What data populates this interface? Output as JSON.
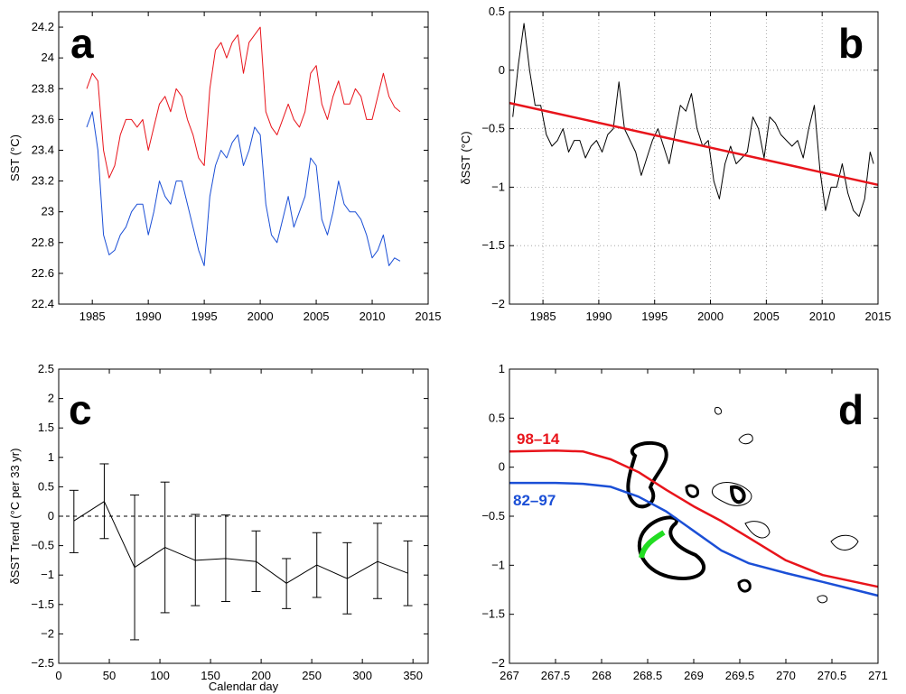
{
  "chart_data": [
    {
      "panel": "a",
      "type": "line",
      "xlabel": "",
      "ylabel": "SST (°C)",
      "xlim": [
        1982,
        2015
      ],
      "ylim": [
        22.4,
        24.3
      ],
      "xticks": [
        1985,
        1990,
        1995,
        2000,
        2005,
        2010,
        2015
      ],
      "yticks": [
        22.4,
        22.6,
        22.8,
        23,
        23.2,
        23.4,
        23.6,
        23.8,
        24,
        24.2
      ],
      "yticklabels": [
        "22.4",
        "22.6",
        "22.8",
        "23",
        "23.2",
        "23.4",
        "23.6",
        "23.8",
        "24",
        "24.2"
      ],
      "grid": false,
      "series": [
        {
          "color": "#e8141b",
          "x": [
            1984.5,
            1985.0,
            1985.5,
            1986.0,
            1986.5,
            1987.0,
            1987.5,
            1988.0,
            1988.5,
            1989.0,
            1989.5,
            1990.0,
            1990.5,
            1991.0,
            1991.5,
            1992.0,
            1992.5,
            1993.0,
            1993.5,
            1994.0,
            1994.5,
            1995.0,
            1995.5,
            1996.0,
            1996.5,
            1997.0,
            1997.5,
            1998.0,
            1998.5,
            1999.0,
            1999.5,
            2000.0,
            2000.5,
            2001.0,
            2001.5,
            2002.0,
            2002.5,
            2003.0,
            2003.5,
            2004.0,
            2004.5,
            2005.0,
            2005.5,
            2006.0,
            2006.5,
            2007.0,
            2007.5,
            2008.0,
            2008.5,
            2009.0,
            2009.5,
            2010.0,
            2010.5,
            2011.0,
            2011.5,
            2012.0,
            2012.5
          ],
          "values": [
            23.8,
            23.9,
            23.85,
            23.4,
            23.22,
            23.3,
            23.5,
            23.6,
            23.6,
            23.55,
            23.6,
            23.4,
            23.55,
            23.7,
            23.75,
            23.65,
            23.8,
            23.75,
            23.6,
            23.5,
            23.35,
            23.3,
            23.8,
            24.05,
            24.1,
            24.0,
            24.1,
            24.15,
            23.9,
            24.1,
            24.15,
            24.2,
            23.65,
            23.55,
            23.5,
            23.6,
            23.7,
            23.6,
            23.55,
            23.65,
            23.9,
            23.95,
            23.7,
            23.6,
            23.75,
            23.85,
            23.7,
            23.7,
            23.8,
            23.75,
            23.6,
            23.6,
            23.75,
            23.9,
            23.75,
            23.68,
            23.65
          ]
        },
        {
          "color": "#1b4fd6",
          "x": [
            1984.5,
            1985.0,
            1985.5,
            1986.0,
            1986.5,
            1987.0,
            1987.5,
            1988.0,
            1988.5,
            1989.0,
            1989.5,
            1990.0,
            1990.5,
            1991.0,
            1991.5,
            1992.0,
            1992.5,
            1993.0,
            1993.5,
            1994.0,
            1994.5,
            1995.0,
            1995.5,
            1996.0,
            1996.5,
            1997.0,
            1997.5,
            1998.0,
            1998.5,
            1999.0,
            1999.5,
            2000.0,
            2000.5,
            2001.0,
            2001.5,
            2002.0,
            2002.5,
            2003.0,
            2003.5,
            2004.0,
            2004.5,
            2005.0,
            2005.5,
            2006.0,
            2006.5,
            2007.0,
            2007.5,
            2008.0,
            2008.5,
            2009.0,
            2009.5,
            2010.0,
            2010.5,
            2011.0,
            2011.5,
            2012.0,
            2012.5
          ],
          "values": [
            23.55,
            23.65,
            23.4,
            22.85,
            22.72,
            22.75,
            22.85,
            22.9,
            23.0,
            23.05,
            23.05,
            22.85,
            23.0,
            23.2,
            23.1,
            23.05,
            23.2,
            23.2,
            23.05,
            22.9,
            22.75,
            22.65,
            23.1,
            23.3,
            23.4,
            23.35,
            23.45,
            23.5,
            23.3,
            23.4,
            23.55,
            23.5,
            23.05,
            22.85,
            22.8,
            22.95,
            23.1,
            22.9,
            23.0,
            23.1,
            23.35,
            23.3,
            22.95,
            22.85,
            23.0,
            23.2,
            23.05,
            23.0,
            23.0,
            22.95,
            22.85,
            22.7,
            22.75,
            22.85,
            22.65,
            22.7,
            22.68
          ]
        }
      ]
    },
    {
      "panel": "b",
      "type": "line",
      "xlabel": "",
      "ylabel": "δSST (°C)",
      "xlim": [
        1982,
        2015
      ],
      "ylim": [
        -2,
        0.5
      ],
      "xticks": [
        1985,
        1990,
        1995,
        2000,
        2005,
        2010,
        2015
      ],
      "yticks": [
        -2,
        -1.5,
        -1,
        -0.5,
        0,
        0.5
      ],
      "yticklabels": [
        "−2",
        "−1.5",
        "−1",
        "−0.5",
        "0",
        "0.5"
      ],
      "grid": true,
      "series": [
        {
          "color": "#000000",
          "x": [
            1982.3,
            1982.8,
            1983.3,
            1983.8,
            1984.3,
            1984.8,
            1985.3,
            1985.8,
            1986.3,
            1986.8,
            1987.3,
            1987.8,
            1988.3,
            1988.8,
            1989.3,
            1989.8,
            1990.3,
            1990.8,
            1991.3,
            1991.8,
            1992.3,
            1992.8,
            1993.3,
            1993.8,
            1994.3,
            1994.8,
            1995.3,
            1995.8,
            1996.3,
            1996.8,
            1997.3,
            1997.8,
            1998.3,
            1998.8,
            1999.3,
            1999.8,
            2000.3,
            2000.8,
            2001.3,
            2001.8,
            2002.3,
            2002.8,
            2003.3,
            2003.8,
            2004.3,
            2004.8,
            2005.3,
            2005.8,
            2006.3,
            2006.8,
            2007.3,
            2007.8,
            2008.3,
            2008.8,
            2009.3,
            2009.8,
            2010.3,
            2010.8,
            2011.3,
            2011.8,
            2012.3,
            2012.8,
            2013.3,
            2013.8,
            2014.3,
            2014.6
          ],
          "values": [
            -0.4,
            0.05,
            0.4,
            0.0,
            -0.3,
            -0.3,
            -0.55,
            -0.65,
            -0.6,
            -0.5,
            -0.7,
            -0.6,
            -0.6,
            -0.75,
            -0.65,
            -0.6,
            -0.7,
            -0.55,
            -0.5,
            -0.1,
            -0.5,
            -0.6,
            -0.7,
            -0.9,
            -0.75,
            -0.6,
            -0.5,
            -0.65,
            -0.8,
            -0.55,
            -0.3,
            -0.35,
            -0.2,
            -0.5,
            -0.65,
            -0.6,
            -0.95,
            -1.1,
            -0.8,
            -0.65,
            -0.8,
            -0.75,
            -0.7,
            -0.4,
            -0.5,
            -0.75,
            -0.4,
            -0.45,
            -0.55,
            -0.6,
            -0.65,
            -0.6,
            -0.75,
            -0.5,
            -0.3,
            -0.85,
            -1.2,
            -1.0,
            -1.0,
            -0.8,
            -1.05,
            -1.2,
            -1.25,
            -1.1,
            -0.7,
            -0.8
          ]
        },
        {
          "color": "#e8141b",
          "x": [
            1982,
            2015
          ],
          "values": [
            -0.28,
            -0.98
          ]
        }
      ]
    },
    {
      "panel": "c",
      "type": "line",
      "xlabel": "Calendar day",
      "ylabel": "δSST Trend (°C per 33 yr)",
      "xlim": [
        0,
        365
      ],
      "ylim": [
        -2.5,
        2.5
      ],
      "xticks": [
        0,
        50,
        100,
        150,
        200,
        250,
        300,
        350
      ],
      "yticks": [
        -2.5,
        -2,
        -1.5,
        -1,
        -0.5,
        0,
        0.5,
        1,
        1.5,
        2,
        2.5
      ],
      "yticklabels": [
        "−2.5",
        "−2",
        "−1.5",
        "−1",
        "−0.5",
        "0",
        "0.5",
        "1",
        "1.5",
        "2",
        "2.5"
      ],
      "grid": false,
      "series": [
        {
          "color": "#000000",
          "x": [
            15,
            45,
            75,
            105,
            135,
            165,
            195,
            225,
            255,
            285,
            315,
            345
          ],
          "values": [
            -0.08,
            0.25,
            -0.87,
            -0.53,
            -0.75,
            -0.72,
            -0.77,
            -1.14,
            -0.83,
            -1.06,
            -0.77,
            -0.97
          ],
          "err_low": [
            -0.62,
            -0.38,
            -2.1,
            -1.64,
            -1.52,
            -1.45,
            -1.28,
            -1.57,
            -1.38,
            -1.66,
            -1.4,
            -1.52
          ],
          "err_high": [
            0.44,
            0.89,
            0.36,
            0.58,
            0.03,
            0.02,
            -0.25,
            -0.72,
            -0.28,
            -0.45,
            -0.12,
            -0.42
          ]
        }
      ],
      "reference_line": {
        "y": 0,
        "style": "dashed"
      }
    },
    {
      "panel": "d",
      "type": "line",
      "xlabel": "",
      "ylabel": "",
      "xlim": [
        267,
        271
      ],
      "ylim": [
        -2,
        1
      ],
      "xticks": [
        267,
        267.5,
        268,
        268.5,
        269,
        269.5,
        270,
        270.5,
        271
      ],
      "xticklabels": [
        "267",
        "267.5",
        "268",
        "268.5",
        "269",
        "269.5",
        "270",
        "270.5",
        "271"
      ],
      "yticks": [
        -2,
        -1.5,
        -1,
        -0.5,
        0,
        0.5,
        1
      ],
      "yticklabels": [
        "−2",
        "−1.5",
        "−1",
        "−0.5",
        "0",
        "0.5",
        "1"
      ],
      "grid": false,
      "annotations": [
        {
          "text": "98–14",
          "color": "#e8141b"
        },
        {
          "text": "82–97",
          "color": "#1b4fd6"
        }
      ],
      "series": [
        {
          "name": "98–14",
          "color": "#e8141b",
          "x": [
            267.0,
            267.5,
            267.8,
            268.1,
            268.4,
            268.7,
            269.0,
            269.3,
            269.6,
            270.0,
            270.4,
            270.7,
            271.0
          ],
          "values": [
            0.16,
            0.17,
            0.16,
            0.08,
            -0.05,
            -0.23,
            -0.4,
            -0.55,
            -0.72,
            -0.95,
            -1.1,
            -1.16,
            -1.22
          ]
        },
        {
          "name": "82–97",
          "color": "#1b4fd6",
          "x": [
            267.0,
            267.5,
            267.8,
            268.1,
            268.4,
            268.7,
            269.0,
            269.3,
            269.6,
            270.0,
            270.4,
            270.7,
            271.0
          ],
          "values": [
            -0.16,
            -0.16,
            -0.17,
            -0.2,
            -0.3,
            -0.45,
            -0.65,
            -0.85,
            -0.98,
            -1.08,
            -1.17,
            -1.24,
            -1.31
          ]
        }
      ]
    }
  ],
  "panel_letters": [
    "a",
    "b",
    "c",
    "d"
  ]
}
